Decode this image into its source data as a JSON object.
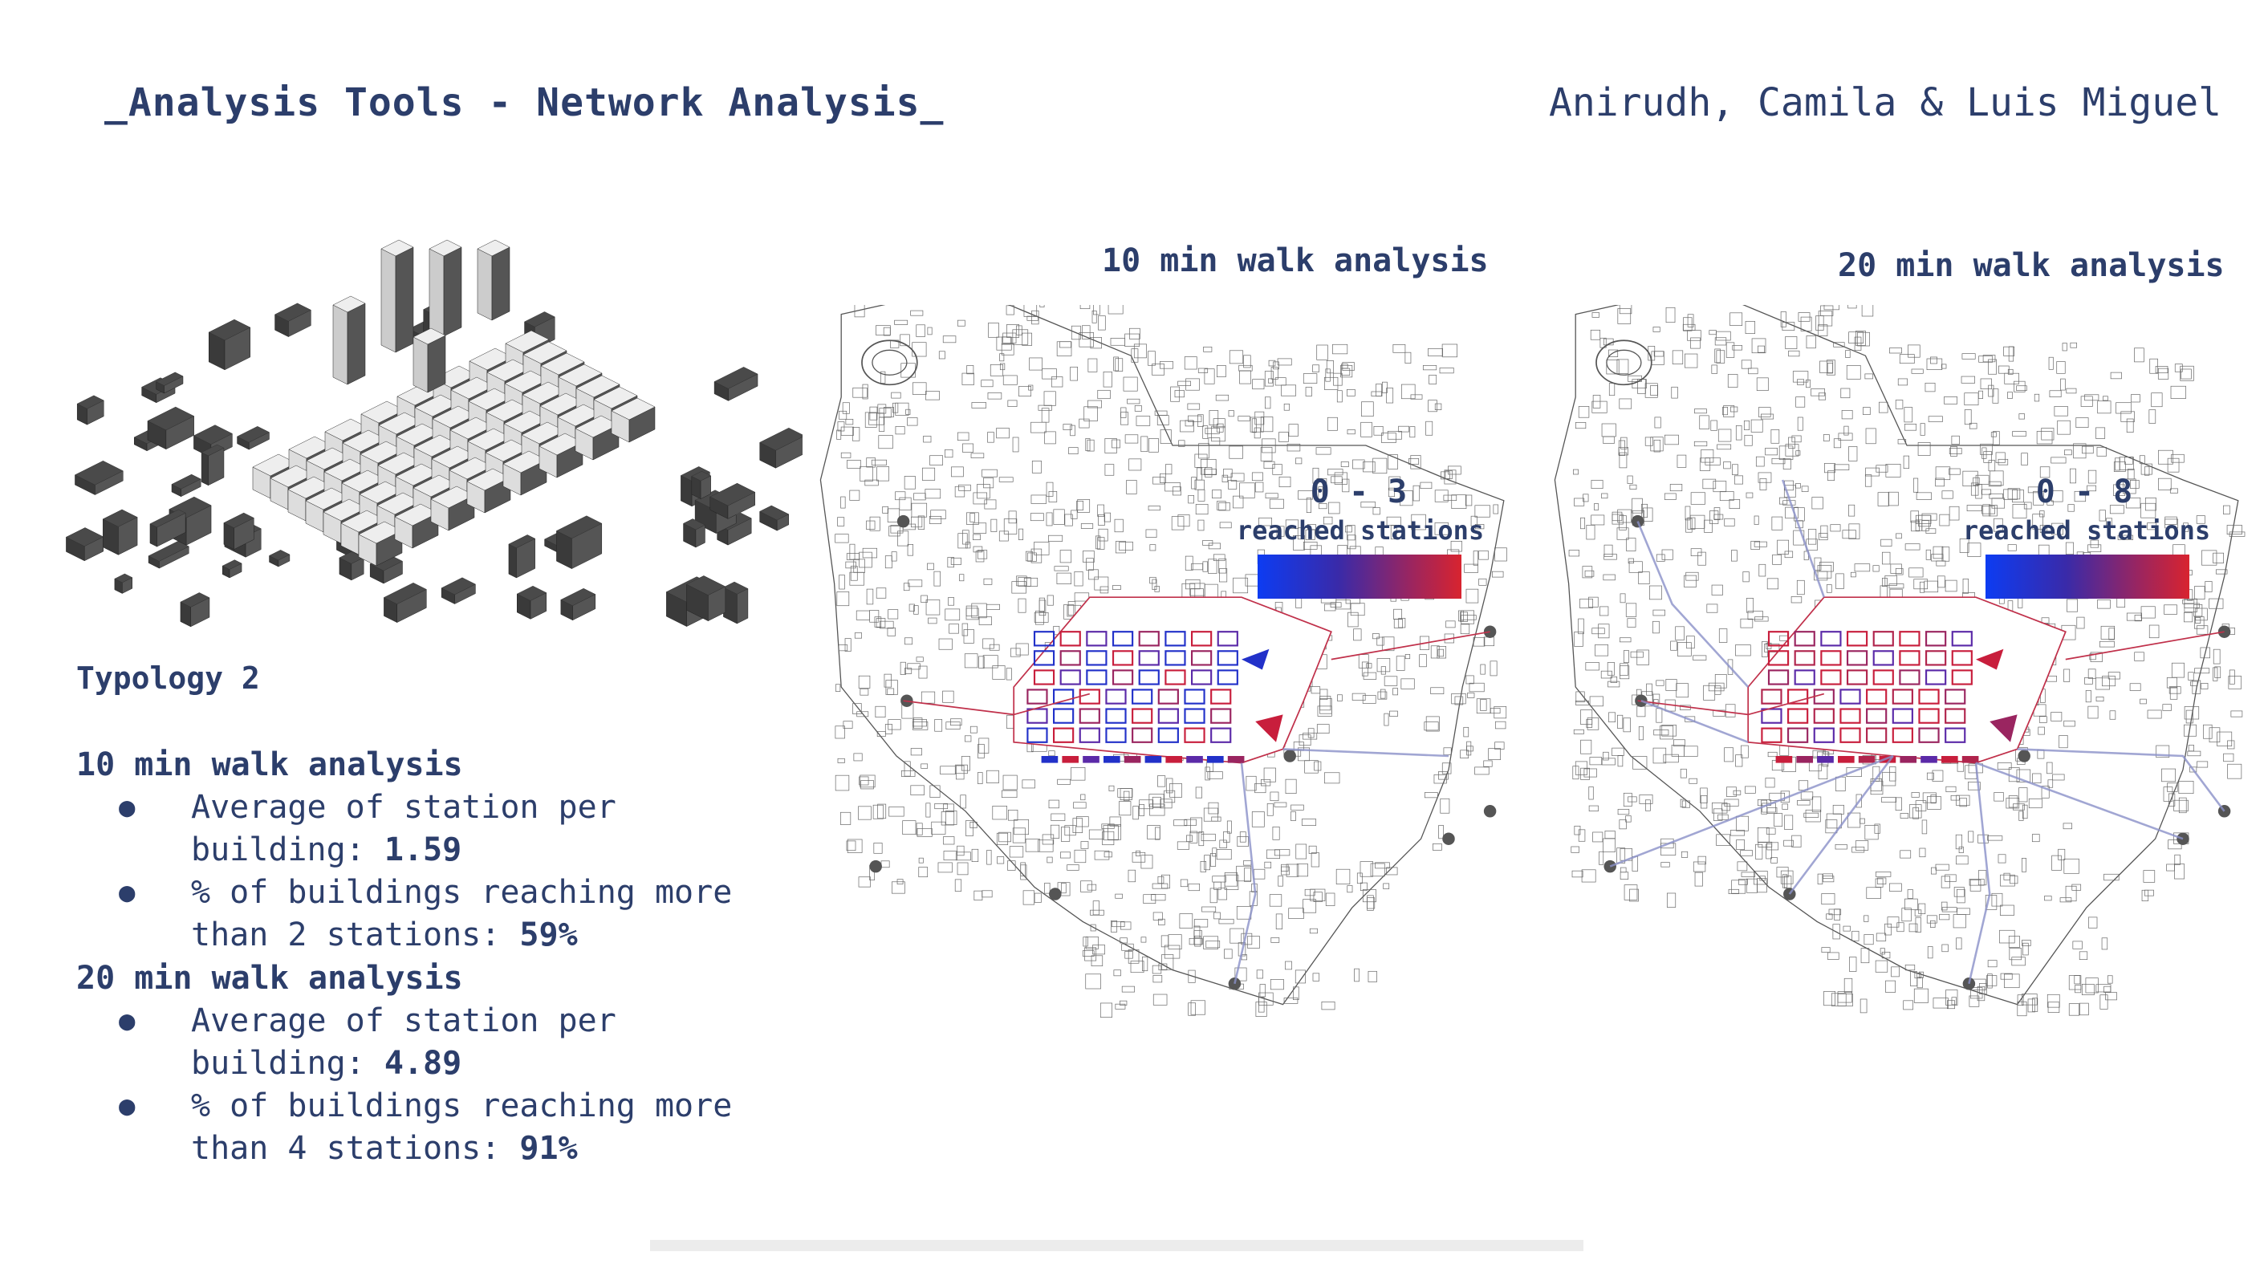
{
  "header": {
    "title": "_Analysis Tools - Network Analysis_",
    "authors": "Anirudh, Camila & Luis Miguel"
  },
  "left": {
    "typology": "Typology 2",
    "sections": [
      {
        "heading": "10 min walk analysis",
        "items": [
          {
            "bullet": "●",
            "line1": "Average of station per",
            "prefix": "building: ",
            "value": "1.59"
          },
          {
            "bullet": "●",
            "line1": "% of buildings reaching more",
            "prefix": "than 2 stations: ",
            "value": "59%"
          }
        ]
      },
      {
        "heading": "20 min walk analysis",
        "items": [
          {
            "bullet": "●",
            "line1": "Average of station per",
            "prefix": "building: ",
            "value": "4.89"
          },
          {
            "bullet": "●",
            "line1": "% of buildings reaching more",
            "prefix": "than 4 stations: ",
            "value": "91%"
          }
        ]
      }
    ]
  },
  "maps": [
    {
      "title": "10 min walk analysis",
      "legend_range": "0 - 3",
      "legend_caption": "reached stations"
    },
    {
      "title": "20 min walk analysis",
      "legend_range": "0 - 8",
      "legend_caption": "reached stations"
    }
  ],
  "colors": {
    "text": "#2c3e6b",
    "gradient_low": "#0d3cf2",
    "gradient_high": "#d8242f",
    "building_fill": "#3a3a3a"
  }
}
